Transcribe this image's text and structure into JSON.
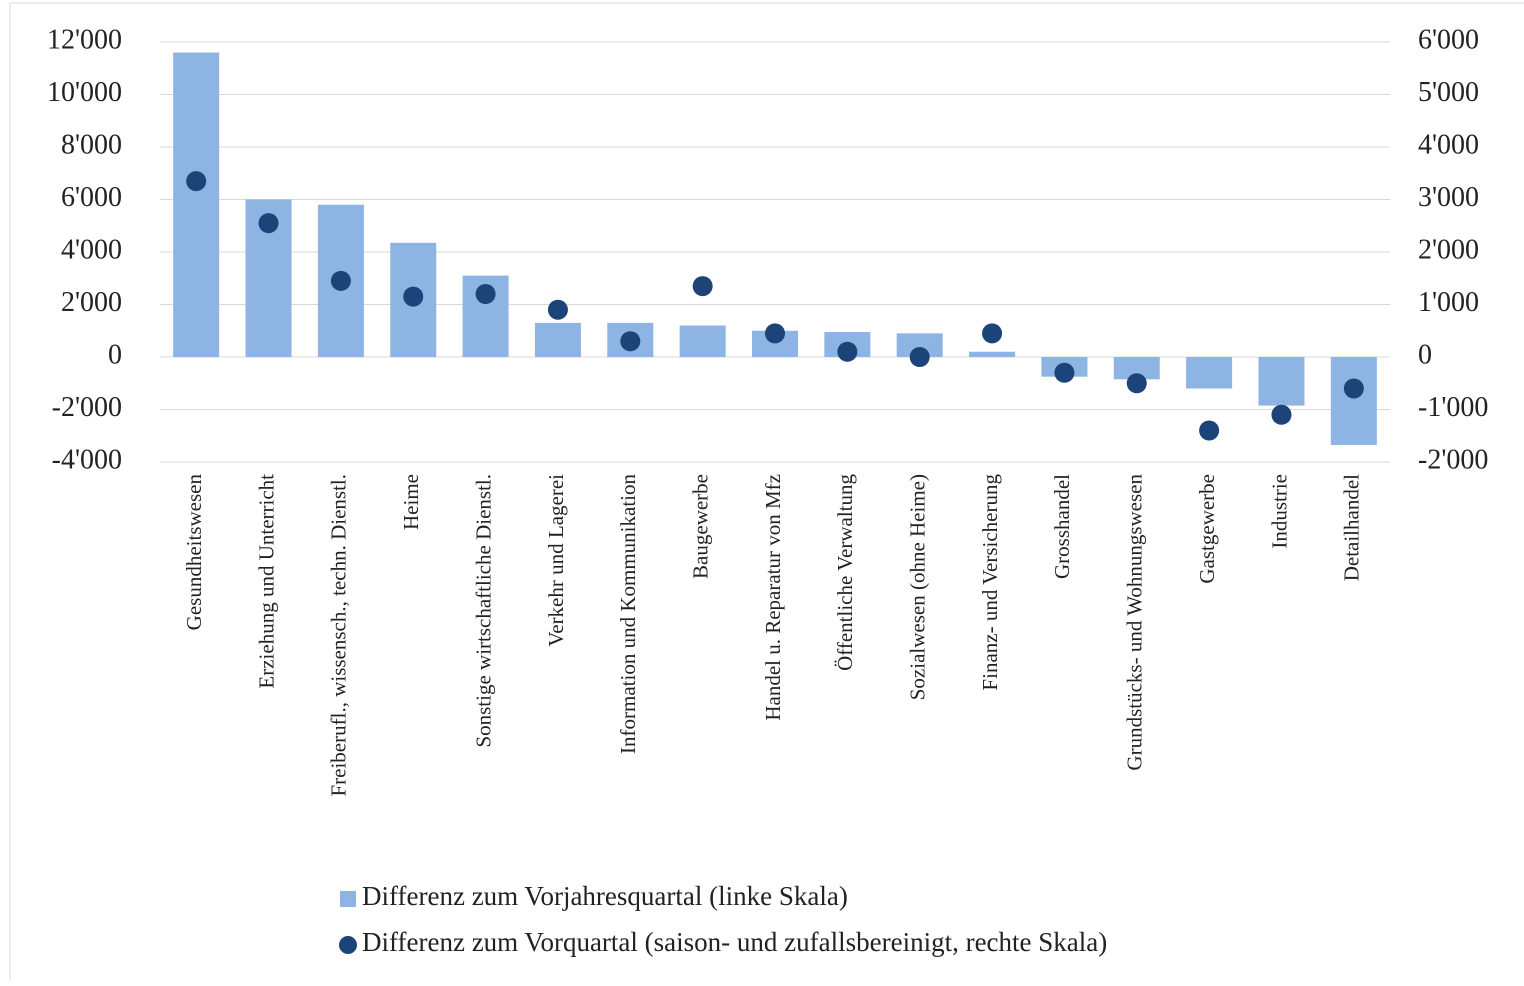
{
  "chart_data": {
    "type": "bar",
    "categories": [
      "Gesundheitswesen",
      "Erziehung und Unterricht",
      "Freiberufl., wissensch., techn. Dienstl.",
      "Heime",
      "Sonstige wirtschaftliche Dienstl.",
      "Verkehr und Lagerei",
      "Information und Kommunikation",
      "Baugewerbe",
      "Handel u. Reparatur von Mfz",
      "Öffentliche Verwaltung",
      "Sozialwesen (ohne Heime)",
      "Finanz- und Versicherung",
      "Grosshandel",
      "Grundstücks- und Wohnungswesen",
      "Gastgewerbe",
      "Industrie",
      "Detailhandel"
    ],
    "series": [
      {
        "name": "Differenz zum Vorjahresquartal (linke Skala)",
        "color": "#8db4e2",
        "type": "bar",
        "axis": "y",
        "values": [
          11600,
          6000,
          5800,
          4350,
          3100,
          1300,
          1300,
          1200,
          1000,
          950,
          900,
          200,
          -750,
          -850,
          -1200,
          -1850,
          -3350
        ]
      },
      {
        "name": "Differenz zum Vorquartal (saison- und zufallsbereinigt, rechte Skala)",
        "color": "#1d4478",
        "type": "scatter",
        "axis": "y2",
        "values": [
          3350,
          2550,
          1450,
          1150,
          1200,
          900,
          300,
          1350,
          450,
          100,
          0,
          450,
          -300,
          -500,
          -1400,
          -1100,
          -600
        ]
      }
    ],
    "ylim": [
      -4000,
      12000
    ],
    "yticks": [
      {
        "value": -4000,
        "label": "-4'000"
      },
      {
        "value": -2000,
        "label": "-2'000"
      },
      0,
      {
        "value": 2000,
        "label": "2'000"
      },
      {
        "value": 4000,
        "label": "4'000"
      },
      {
        "value": 6000,
        "label": "6'000"
      },
      {
        "value": 8000,
        "label": "8'000"
      },
      {
        "value": 10000,
        "label": "10'000"
      },
      {
        "value": 12000,
        "label": "12'000"
      }
    ],
    "y2lim": [
      -2000,
      6000
    ],
    "y2ticks": [
      {
        "value": -2000,
        "label": "-2'000"
      },
      {
        "value": -1000,
        "label": "-1'000"
      },
      0,
      {
        "value": 1000,
        "label": "1'000"
      },
      {
        "value": 2000,
        "label": "2'000"
      },
      {
        "value": 3000,
        "label": "3'000"
      },
      {
        "value": 4000,
        "label": "4'000"
      },
      {
        "value": 5000,
        "label": "5'000"
      },
      {
        "value": 6000,
        "label": "6'000"
      }
    ],
    "grid": true,
    "legend": "bottom"
  }
}
